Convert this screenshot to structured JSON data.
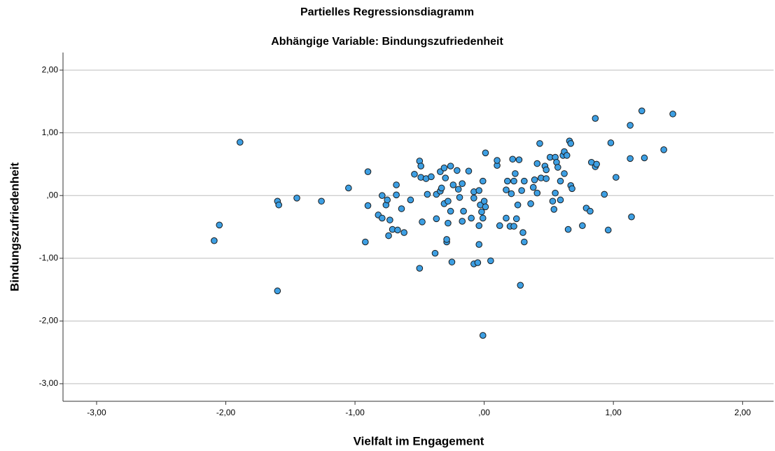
{
  "chart_data": {
    "type": "scatter",
    "title": "Partielles Regressionsdiagramm",
    "subtitle": "Abhängige Variable: Bindungszufriedenheit",
    "x_label": "Vielfalt im Engagement",
    "y_label": "Bindungszufriedenheit",
    "xlim": [
      -3.26,
      2.24
    ],
    "ylim": [
      -3.28,
      2.28
    ],
    "xticks": [
      {
        "value": -3,
        "label": "-3,00"
      },
      {
        "value": -2,
        "label": "-2,00"
      },
      {
        "value": -1,
        "label": "-1,00"
      },
      {
        "value": 0,
        "label": ",00"
      },
      {
        "value": 1,
        "label": "1,00"
      },
      {
        "value": 2,
        "label": "2,00"
      }
    ],
    "yticks": [
      {
        "value": 2,
        "label": "2,00"
      },
      {
        "value": 1,
        "label": "1,00"
      },
      {
        "value": 0,
        "label": ",00"
      },
      {
        "value": -1,
        "label": "-1,00"
      },
      {
        "value": -2,
        "label": "-2,00"
      },
      {
        "value": -3,
        "label": "-3,00"
      }
    ],
    "grid": true,
    "color": "#3d9fe3",
    "x": [
      -2.09,
      -2.05,
      -1.89,
      -1.6,
      -1.59,
      -1.6,
      -1.45,
      -1.26,
      -1.05,
      -0.92,
      -0.9,
      -0.9,
      -0.82,
      -0.79,
      -0.79,
      -0.76,
      -0.75,
      -0.74,
      -0.73,
      -0.71,
      -0.68,
      -0.68,
      -0.67,
      -0.64,
      -0.62,
      -0.57,
      -0.54,
      -0.5,
      -0.49,
      -0.49,
      -0.48,
      -0.5,
      -0.45,
      -0.44,
      -0.41,
      -0.37,
      -0.37,
      -0.38,
      -0.34,
      -0.34,
      -0.33,
      -0.31,
      -0.31,
      -0.3,
      -0.29,
      -0.28,
      -0.28,
      -0.29,
      -0.26,
      -0.26,
      -0.25,
      -0.24,
      -0.21,
      -0.2,
      -0.19,
      -0.17,
      -0.17,
      -0.16,
      -0.12,
      -0.1,
      -0.08,
      -0.08,
      -0.08,
      -0.05,
      -0.04,
      -0.04,
      -0.04,
      -0.03,
      -0.02,
      -0.01,
      -0.01,
      -0.01,
      0,
      0.01,
      0.01,
      0.05,
      0.1,
      0.1,
      0.12,
      0.17,
      0.17,
      0.18,
      0.2,
      0.21,
      0.23,
      0.22,
      0.24,
      0.23,
      0.25,
      0.26,
      0.27,
      0.29,
      0.3,
      0.31,
      0.28,
      0.31,
      0.36,
      0.38,
      0.39,
      0.41,
      0.41,
      0.43,
      0.44,
      0.47,
      0.48,
      0.48,
      0.51,
      0.53,
      0.54,
      0.55,
      0.55,
      0.56,
      0.57,
      0.59,
      0.59,
      0.61,
      0.62,
      0.62,
      0.64,
      0.65,
      0.66,
      0.67,
      0.67,
      0.68,
      0.76,
      0.79,
      0.82,
      0.83,
      0.86,
      0.86,
      0.87,
      0.93,
      0.96,
      0.98,
      1.02,
      1.13,
      1.13,
      1.14,
      1.22,
      1.24,
      1.39,
      1.46
    ],
    "y": [
      -0.72,
      -0.47,
      0.85,
      -0.09,
      -0.15,
      -1.52,
      -0.04,
      -0.09,
      0.12,
      -0.74,
      0.38,
      -0.16,
      -0.31,
      0,
      -0.36,
      -0.15,
      -0.07,
      -0.64,
      -0.39,
      -0.54,
      0.17,
      0.01,
      -0.55,
      -0.21,
      -0.59,
      -0.07,
      0.34,
      0.55,
      0.47,
      0.29,
      -0.42,
      -1.16,
      0.27,
      0.02,
      0.3,
      0.02,
      -0.37,
      -0.92,
      0.07,
      0.38,
      0.12,
      0.44,
      -0.13,
      0.28,
      -0.74,
      -0.44,
      -0.09,
      -0.7,
      -0.25,
      0.47,
      -1.06,
      0.17,
      0.4,
      0.1,
      -0.03,
      0.19,
      -0.41,
      -0.25,
      0.39,
      -0.36,
      0.06,
      -0.04,
      -1.09,
      -1.07,
      -0.78,
      -0.48,
      0.08,
      -0.15,
      -0.26,
      -0.36,
      -2.23,
      0.23,
      -0.09,
      -0.18,
      0.68,
      -1.04,
      0.48,
      0.56,
      -0.48,
      -0.36,
      0.09,
      0.23,
      -0.49,
      0.03,
      0.23,
      0.58,
      0.35,
      -0.49,
      -0.37,
      -0.15,
      0.57,
      0.08,
      -0.59,
      -0.74,
      -1.43,
      0.23,
      -0.13,
      0.13,
      0.25,
      0.04,
      0.51,
      0.83,
      0.28,
      0.47,
      0.41,
      0.27,
      0.61,
      -0.09,
      -0.22,
      0.61,
      0.04,
      0.53,
      0.45,
      -0.07,
      0.23,
      0.64,
      0.35,
      0.7,
      0.64,
      -0.54,
      0.87,
      0.83,
      0.16,
      0.11,
      -0.48,
      -0.2,
      -0.25,
      0.53,
      1.23,
      0.46,
      0.5,
      0.02,
      -0.55,
      0.84,
      0.29,
      1.12,
      0.59,
      -0.34,
      1.35,
      0.6,
      0.73,
      1.3
    ]
  }
}
